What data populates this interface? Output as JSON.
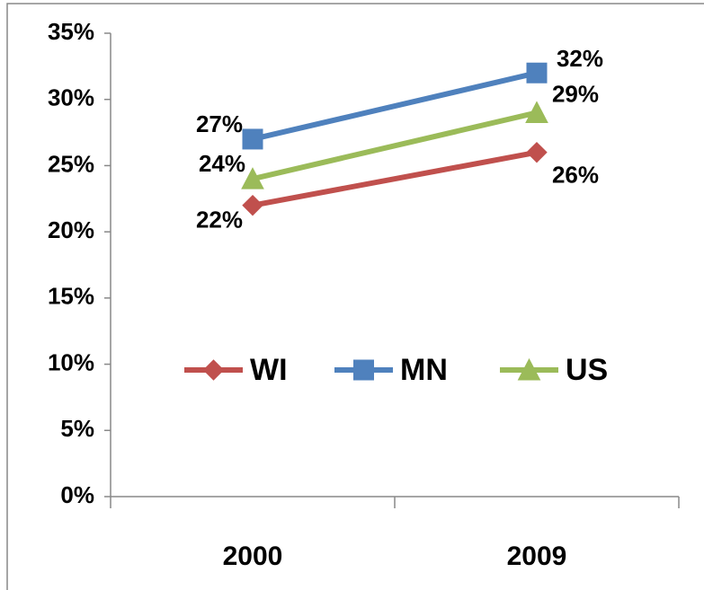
{
  "chart_data": {
    "type": "line",
    "categories": [
      "2000",
      "2009"
    ],
    "series": [
      {
        "name": "WI",
        "color": "#c0504d",
        "marker": "diamond",
        "values": [
          22,
          26
        ],
        "value_labels": [
          "22%",
          "26%"
        ]
      },
      {
        "name": "MN",
        "color": "#4f81bd",
        "marker": "square",
        "values": [
          27,
          32
        ],
        "value_labels": [
          "27%",
          "32%"
        ]
      },
      {
        "name": "US",
        "color": "#9bbb59",
        "marker": "triangle",
        "values": [
          24,
          29
        ],
        "value_labels": [
          "24%",
          "29%"
        ]
      }
    ],
    "ylim": [
      0,
      35
    ],
    "yticks": [
      {
        "value": 0,
        "label": "0%"
      },
      {
        "value": 5,
        "label": "5%"
      },
      {
        "value": 10,
        "label": "10%"
      },
      {
        "value": 15,
        "label": "15%"
      },
      {
        "value": 20,
        "label": "20%"
      },
      {
        "value": 25,
        "label": "25%"
      },
      {
        "value": 30,
        "label": "30%"
      },
      {
        "value": 35,
        "label": "35%"
      }
    ],
    "legend": "center"
  }
}
